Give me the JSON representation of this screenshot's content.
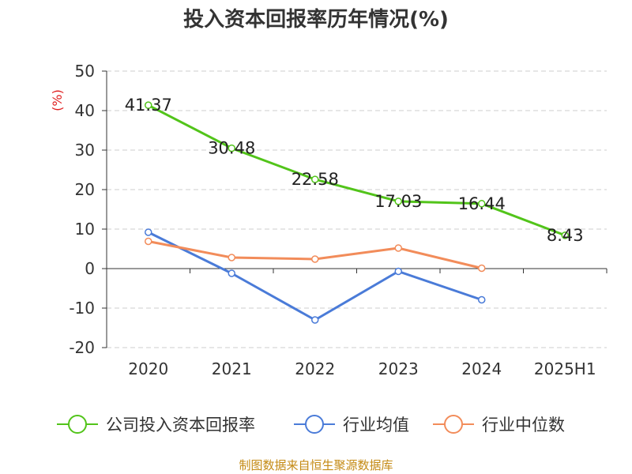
{
  "chart_data": {
    "type": "line",
    "title": "投入资本回报率历年情况(%)",
    "ylabel": "(%)",
    "categories": [
      "2020",
      "2021",
      "2022",
      "2023",
      "2024",
      "2025H1"
    ],
    "ylim": [
      -20,
      50
    ],
    "yticks": [
      50,
      40,
      30,
      20,
      10,
      0,
      -10,
      -20
    ],
    "grid": true,
    "legend_position": "bottom",
    "series": [
      {
        "name": "公司投入资本回报率",
        "color": "#52c41a",
        "values": [
          41.37,
          30.48,
          22.58,
          17.03,
          16.44,
          8.43
        ],
        "labels": [
          "41.37",
          "30.48",
          "22.58",
          "17.03",
          "16.44",
          "8.43"
        ]
      },
      {
        "name": "行业均值",
        "color": "#4a7bd8",
        "values": [
          9.2,
          -1.2,
          -13.0,
          -0.7,
          -7.9,
          null
        ]
      },
      {
        "name": "行业中位数",
        "color": "#f28c5a",
        "values": [
          6.9,
          2.8,
          2.4,
          5.2,
          0.1,
          null
        ]
      }
    ]
  },
  "source_note": "制图数据来自恒生聚源数据库"
}
